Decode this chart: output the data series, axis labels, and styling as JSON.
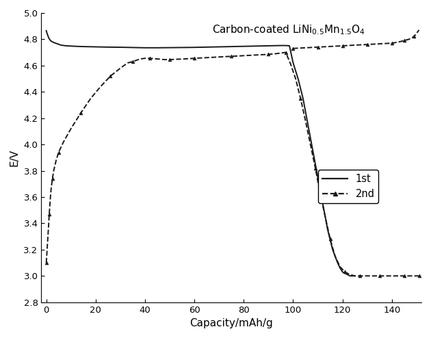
{
  "title": "Carbon-coated LiNi$_{0.5}$Mn$_{1.5}$O$_{4}$",
  "xlabel": "Capacity/mAh/g",
  "ylabel": "E/V",
  "xlim": [
    -2,
    152
  ],
  "ylim": [
    2.8,
    5.0
  ],
  "xticks": [
    0,
    20,
    40,
    60,
    80,
    100,
    120,
    140
  ],
  "yticks": [
    2.8,
    3.0,
    3.2,
    3.4,
    3.6,
    3.8,
    4.0,
    4.2,
    4.4,
    4.6,
    4.8,
    5.0
  ],
  "curve1_x": [
    0.0,
    0.3,
    0.6,
    1.0,
    1.5,
    2.0,
    3.0,
    4.5,
    6.0,
    8.0,
    10.0,
    12.0,
    15.0,
    20.0,
    25.0,
    30.0,
    35.0,
    40.0,
    45.0,
    50.0,
    55.0,
    60.0,
    65.0,
    70.0,
    75.0,
    80.0,
    85.0,
    90.0,
    95.0,
    97.0,
    98.5,
    100.0,
    102.0,
    104.0,
    106.0,
    108.0,
    110.0,
    112.0,
    114.0,
    116.0,
    118.0,
    119.0,
    120.0,
    121.0,
    122.0,
    123.0,
    124.0,
    125.0
  ],
  "curve1_y": [
    4.865,
    4.845,
    4.83,
    4.81,
    4.795,
    4.785,
    4.775,
    4.765,
    4.755,
    4.75,
    4.748,
    4.746,
    4.744,
    4.742,
    4.74,
    4.739,
    4.737,
    4.735,
    4.735,
    4.736,
    4.737,
    4.738,
    4.74,
    4.742,
    4.744,
    4.746,
    4.748,
    4.75,
    4.752,
    4.752,
    4.75,
    4.62,
    4.5,
    4.35,
    4.15,
    3.95,
    3.75,
    3.55,
    3.35,
    3.2,
    3.1,
    3.06,
    3.03,
    3.02,
    3.01,
    3.0,
    3.0,
    3.0
  ],
  "curve2_x": [
    0.0,
    0.4,
    0.8,
    1.2,
    1.6,
    2.0,
    2.5,
    3.0,
    4.0,
    5.0,
    7.0,
    10.0,
    14.0,
    18.0,
    22.0,
    26.0,
    30.0,
    33.0,
    35.0,
    38.0,
    40.0,
    42.0,
    45.0,
    48.0,
    50.0,
    53.0,
    56.0,
    60.0,
    65.0,
    70.0,
    75.0,
    80.0,
    85.0,
    90.0,
    93.0,
    95.0,
    97.0,
    99.0,
    101.0,
    103.0,
    105.0,
    107.0,
    109.0,
    111.0,
    113.0,
    115.0,
    117.0,
    119.0,
    121.0,
    123.0,
    125.0,
    127.0,
    128.0,
    130.0,
    135.0,
    140.0,
    143.0,
    145.0,
    147.0,
    149.0,
    151.0
  ],
  "curve2_y": [
    3.1,
    3.22,
    3.34,
    3.47,
    3.58,
    3.67,
    3.74,
    3.8,
    3.88,
    3.94,
    4.02,
    4.12,
    4.24,
    4.35,
    4.44,
    4.52,
    4.58,
    4.62,
    4.63,
    4.65,
    4.655,
    4.655,
    4.65,
    4.645,
    4.645,
    4.648,
    4.65,
    4.655,
    4.66,
    4.665,
    4.67,
    4.675,
    4.68,
    4.685,
    4.69,
    4.695,
    4.7,
    4.61,
    4.5,
    4.35,
    4.18,
    4.0,
    3.82,
    3.62,
    3.45,
    3.28,
    3.15,
    3.07,
    3.03,
    3.01,
    3.0,
    3.0,
    3.0,
    3.0,
    3.0,
    3.0,
    3.0,
    3.0,
    3.0,
    3.0,
    3.0
  ],
  "curve2_top_x": [
    100.0,
    105.0,
    110.0,
    115.0,
    120.0,
    125.0,
    130.0,
    135.0,
    140.0,
    143.0,
    145.0,
    147.0,
    149.0,
    151.0
  ],
  "curve2_top_y": [
    4.73,
    4.735,
    4.74,
    4.745,
    4.75,
    4.755,
    4.76,
    4.765,
    4.77,
    4.78,
    4.79,
    4.8,
    4.82,
    4.87
  ],
  "legend_1st": "1st",
  "legend_2nd": "2nd",
  "line_color": "#1a1a1a",
  "bg_color": "#ffffff"
}
